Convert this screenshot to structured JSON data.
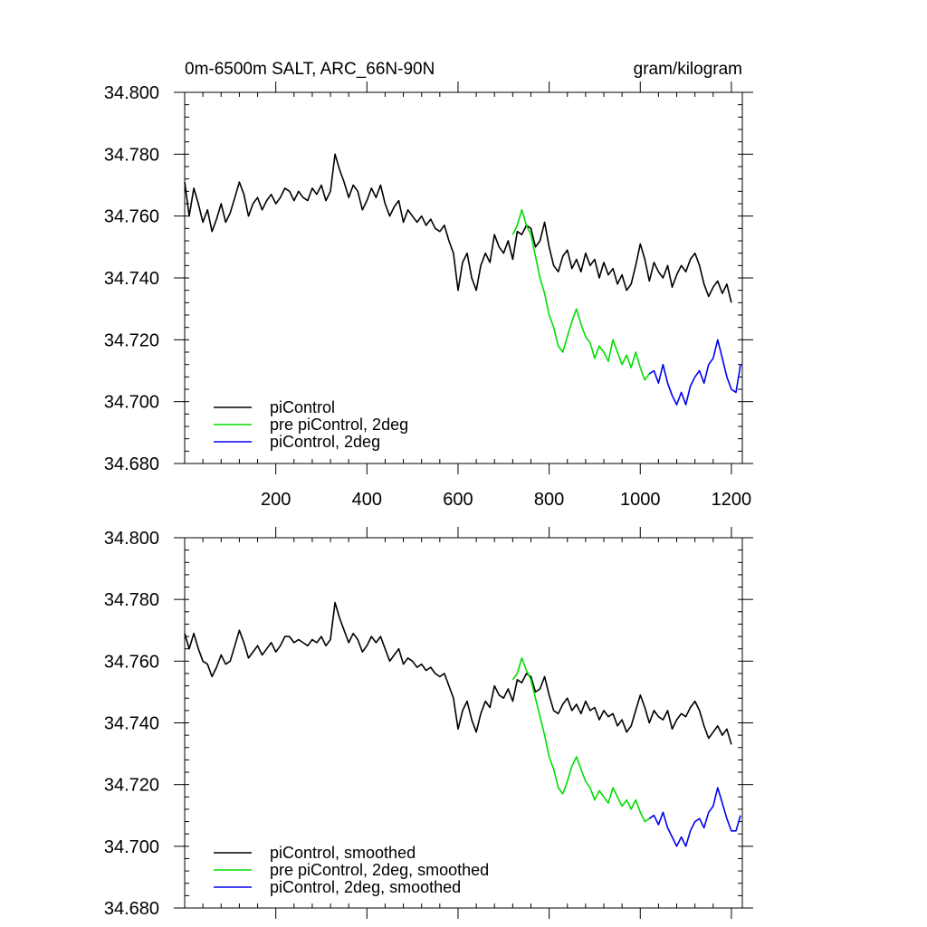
{
  "chart_data": [
    {
      "type": "line",
      "title_left": "0m-6500m SALT, ARC_66N-90N",
      "title_right": "gram/kilogram",
      "xlim": [
        0,
        1224
      ],
      "ylim": [
        34.68,
        34.8
      ],
      "xticks": [
        200,
        400,
        600,
        800,
        1000,
        1200
      ],
      "xtick_labels": [
        "200",
        "400",
        "600",
        "800",
        "1000",
        "1200"
      ],
      "yticks": [
        34.68,
        34.7,
        34.72,
        34.74,
        34.76,
        34.78,
        34.8
      ],
      "ytick_labels": [
        "34.680",
        "34.700",
        "34.720",
        "34.740",
        "34.760",
        "34.780",
        "34.800"
      ],
      "legend_position": "bottom-left",
      "series": [
        {
          "name": "piControl",
          "color": "#000000",
          "x": [
            0,
            10,
            20,
            30,
            40,
            50,
            60,
            70,
            80,
            90,
            100,
            110,
            120,
            130,
            140,
            150,
            160,
            170,
            180,
            190,
            200,
            210,
            220,
            230,
            240,
            250,
            260,
            270,
            280,
            290,
            300,
            310,
            320,
            330,
            340,
            350,
            360,
            370,
            380,
            390,
            400,
            410,
            420,
            430,
            440,
            450,
            460,
            470,
            480,
            490,
            500,
            510,
            520,
            530,
            540,
            550,
            560,
            570,
            580,
            590,
            600,
            610,
            620,
            630,
            640,
            650,
            660,
            670,
            680,
            690,
            700,
            710,
            720,
            730,
            740,
            750,
            760,
            770,
            780,
            790,
            800,
            810,
            820,
            830,
            840,
            850,
            860,
            870,
            880,
            890,
            900,
            910,
            920,
            930,
            940,
            950,
            960,
            970,
            980,
            990,
            1000,
            1010,
            1020,
            1030,
            1040,
            1050,
            1060,
            1070,
            1080,
            1090,
            1100,
            1110,
            1120,
            1130,
            1140,
            1150,
            1160,
            1170,
            1180,
            1190,
            1200
          ],
          "y": [
            34.771,
            34.76,
            34.769,
            34.764,
            34.758,
            34.762,
            34.755,
            34.759,
            34.764,
            34.758,
            34.761,
            34.766,
            34.771,
            34.767,
            34.76,
            34.764,
            34.766,
            34.762,
            34.765,
            34.767,
            34.764,
            34.766,
            34.769,
            34.768,
            34.765,
            34.768,
            34.766,
            34.765,
            34.769,
            34.767,
            34.77,
            34.765,
            34.768,
            34.78,
            34.775,
            34.771,
            34.766,
            34.77,
            34.768,
            34.762,
            34.765,
            34.769,
            34.766,
            34.77,
            34.764,
            34.76,
            34.763,
            34.765,
            34.758,
            34.762,
            34.76,
            34.758,
            34.76,
            34.757,
            34.759,
            34.756,
            34.755,
            34.757,
            34.752,
            34.748,
            34.736,
            34.745,
            34.748,
            34.74,
            34.736,
            34.744,
            34.748,
            34.745,
            34.754,
            34.75,
            34.748,
            34.752,
            34.746,
            34.755,
            34.754,
            34.757,
            34.756,
            34.75,
            34.752,
            34.758,
            34.75,
            34.744,
            34.742,
            34.747,
            34.749,
            34.743,
            34.746,
            34.742,
            34.748,
            34.744,
            34.746,
            34.74,
            34.745,
            34.741,
            34.743,
            34.738,
            34.741,
            34.736,
            34.738,
            34.744,
            34.751,
            34.746,
            34.739,
            34.745,
            34.742,
            34.74,
            34.744,
            34.737,
            34.741,
            34.744,
            34.742,
            34.746,
            34.748,
            34.744,
            34.738,
            34.734,
            34.737,
            34.739,
            34.735,
            34.738,
            34.732
          ]
        },
        {
          "name": "pre piControl, 2deg",
          "color": "#00dd00",
          "x": [
            720,
            730,
            740,
            750,
            760,
            770,
            780,
            790,
            800,
            810,
            820,
            830,
            840,
            850,
            860,
            870,
            880,
            890,
            900,
            910,
            920,
            930,
            940,
            950,
            960,
            970,
            980,
            990,
            1000,
            1010,
            1020
          ],
          "y": [
            34.754,
            34.757,
            34.762,
            34.757,
            34.754,
            34.747,
            34.74,
            34.735,
            34.728,
            34.724,
            34.718,
            34.716,
            34.721,
            34.726,
            34.73,
            34.725,
            34.721,
            34.719,
            34.714,
            34.718,
            34.716,
            34.713,
            34.72,
            34.716,
            34.712,
            34.715,
            34.711,
            34.716,
            34.711,
            34.707,
            34.709
          ]
        },
        {
          "name": "piControl, 2deg",
          "color": "#0000ee",
          "x": [
            1020,
            1030,
            1040,
            1050,
            1060,
            1070,
            1080,
            1090,
            1100,
            1110,
            1120,
            1130,
            1140,
            1150,
            1160,
            1170,
            1180,
            1190,
            1200,
            1210,
            1220
          ],
          "y": [
            34.709,
            34.71,
            34.706,
            34.712,
            34.706,
            34.702,
            34.699,
            34.703,
            34.699,
            34.705,
            34.708,
            34.71,
            34.706,
            34.712,
            34.714,
            34.72,
            34.714,
            34.708,
            34.704,
            34.703,
            34.712
          ]
        }
      ]
    },
    {
      "type": "line",
      "xlim": [
        0,
        1224
      ],
      "ylim": [
        34.68,
        34.8
      ],
      "xticks": [
        200,
        400,
        600,
        800,
        1000,
        1200
      ],
      "yticks": [
        34.68,
        34.7,
        34.72,
        34.74,
        34.76,
        34.78,
        34.8
      ],
      "ytick_labels": [
        "34.680",
        "34.700",
        "34.720",
        "34.740",
        "34.760",
        "34.780",
        "34.800"
      ],
      "legend_position": "bottom-left",
      "series": [
        {
          "name": "piControl, smoothed",
          "color": "#000000",
          "x": [
            0,
            10,
            20,
            30,
            40,
            50,
            60,
            70,
            80,
            90,
            100,
            110,
            120,
            130,
            140,
            150,
            160,
            170,
            180,
            190,
            200,
            210,
            220,
            230,
            240,
            250,
            260,
            270,
            280,
            290,
            300,
            310,
            320,
            330,
            340,
            350,
            360,
            370,
            380,
            390,
            400,
            410,
            420,
            430,
            440,
            450,
            460,
            470,
            480,
            490,
            500,
            510,
            520,
            530,
            540,
            550,
            560,
            570,
            580,
            590,
            600,
            610,
            620,
            630,
            640,
            650,
            660,
            670,
            680,
            690,
            700,
            710,
            720,
            730,
            740,
            750,
            760,
            770,
            780,
            790,
            800,
            810,
            820,
            830,
            840,
            850,
            860,
            870,
            880,
            890,
            900,
            910,
            920,
            930,
            940,
            950,
            960,
            970,
            980,
            990,
            1000,
            1010,
            1020,
            1030,
            1040,
            1050,
            1060,
            1070,
            1080,
            1090,
            1100,
            1110,
            1120,
            1130,
            1140,
            1150,
            1160,
            1170,
            1180,
            1190,
            1200
          ],
          "y": [
            34.769,
            34.764,
            34.769,
            34.764,
            34.76,
            34.759,
            34.755,
            34.758,
            34.762,
            34.759,
            34.76,
            34.765,
            34.77,
            34.766,
            34.761,
            34.763,
            34.765,
            34.762,
            34.764,
            34.766,
            34.763,
            34.765,
            34.768,
            34.768,
            34.766,
            34.767,
            34.766,
            34.765,
            34.767,
            34.766,
            34.768,
            34.765,
            34.767,
            34.779,
            34.774,
            34.77,
            34.766,
            34.769,
            34.767,
            34.763,
            34.765,
            34.768,
            34.766,
            34.768,
            34.764,
            34.76,
            34.762,
            34.764,
            34.759,
            34.761,
            34.76,
            34.758,
            34.759,
            34.757,
            34.758,
            34.756,
            34.755,
            34.756,
            34.752,
            34.748,
            34.738,
            34.744,
            34.747,
            34.741,
            34.737,
            34.743,
            34.747,
            34.745,
            34.752,
            34.749,
            34.748,
            34.751,
            34.747,
            34.754,
            34.753,
            34.756,
            34.755,
            34.75,
            34.751,
            34.755,
            34.749,
            34.744,
            34.743,
            34.746,
            34.748,
            34.744,
            34.746,
            34.743,
            34.747,
            34.744,
            34.745,
            34.741,
            34.744,
            34.742,
            34.743,
            34.739,
            34.741,
            34.737,
            34.739,
            34.744,
            34.749,
            34.745,
            34.74,
            34.744,
            34.742,
            34.741,
            34.744,
            34.738,
            34.741,
            34.743,
            34.742,
            34.745,
            34.747,
            34.744,
            34.739,
            34.735,
            34.737,
            34.739,
            34.736,
            34.738,
            34.733
          ]
        },
        {
          "name": "pre piControl, 2deg, smoothed",
          "color": "#00dd00",
          "x": [
            720,
            730,
            740,
            750,
            760,
            770,
            780,
            790,
            800,
            810,
            820,
            830,
            840,
            850,
            860,
            870,
            880,
            890,
            900,
            910,
            920,
            930,
            940,
            950,
            960,
            970,
            980,
            990,
            1000,
            1010,
            1020
          ],
          "y": [
            34.754,
            34.756,
            34.761,
            34.757,
            34.754,
            34.748,
            34.742,
            34.736,
            34.729,
            34.725,
            34.719,
            34.717,
            34.721,
            34.726,
            34.729,
            34.725,
            34.721,
            34.719,
            34.715,
            34.718,
            34.716,
            34.714,
            34.719,
            34.716,
            34.713,
            34.715,
            34.712,
            34.715,
            34.711,
            34.708,
            34.709
          ]
        },
        {
          "name": "piControl, 2deg, smoothed",
          "color": "#0000ee",
          "x": [
            1020,
            1030,
            1040,
            1050,
            1060,
            1070,
            1080,
            1090,
            1100,
            1110,
            1120,
            1130,
            1140,
            1150,
            1160,
            1170,
            1180,
            1190,
            1200,
            1210,
            1220
          ],
          "y": [
            34.709,
            34.71,
            34.707,
            34.711,
            34.706,
            34.703,
            34.7,
            34.703,
            34.7,
            34.705,
            34.708,
            34.709,
            34.706,
            34.711,
            34.713,
            34.719,
            34.714,
            34.709,
            34.705,
            34.705,
            34.71
          ]
        }
      ]
    }
  ]
}
